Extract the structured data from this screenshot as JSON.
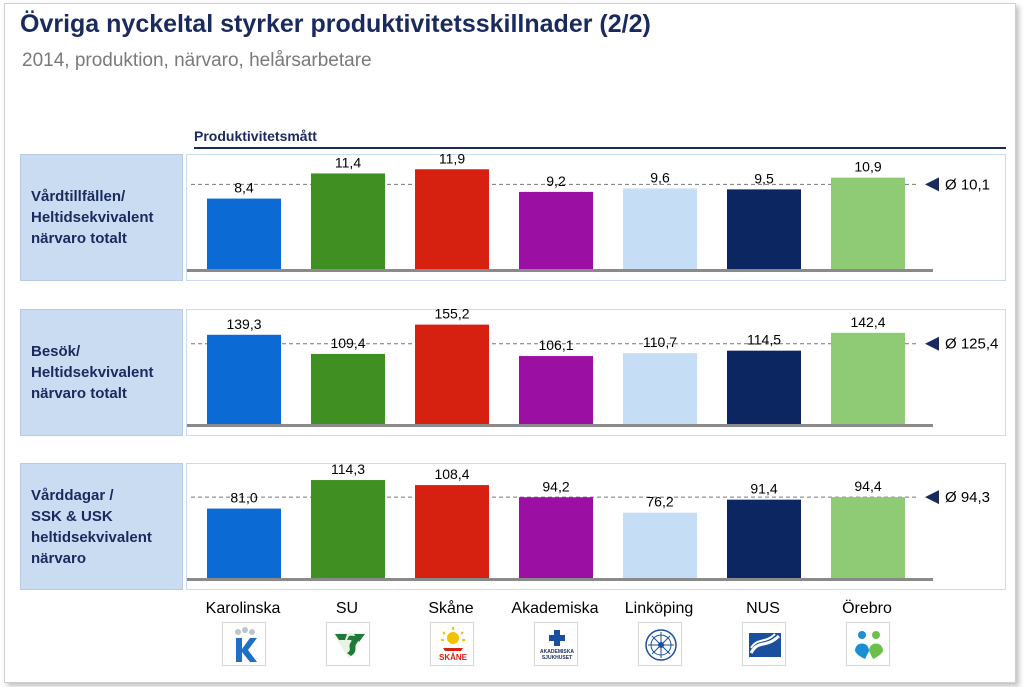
{
  "title": "Övriga nyckeltal styrker produktivitetsskillnader (2/2)",
  "subtitle": "2014, produktion, närvaro, helårsarbetare",
  "section_header": "Produktivitetsmått",
  "categories": [
    "Karolinska",
    "SU",
    "Skåne",
    "Akademiska",
    "Linköping",
    "NUS",
    "Örebro"
  ],
  "colors": [
    "#0c6ad4",
    "#3f8f22",
    "#d62010",
    "#9b10a3",
    "#c6ddf6",
    "#0b2661",
    "#8ecb74"
  ],
  "logos": [
    "karolinska-logo",
    "su-logo",
    "skane-logo",
    "akademiska-logo",
    "linkoping-logo",
    "nus-logo",
    "orebro-logo"
  ],
  "logo_texts": {
    "akademiska": "AKADEMISKA SJUKHUSET",
    "skane": "SKÅNE"
  },
  "chart_data": [
    {
      "type": "bar",
      "title": "Vårdtillfällen/\nHeltidsekvivalent\nnärvaro totalt",
      "categories": [
        "Karolinska",
        "SU",
        "Skåne",
        "Akademiska",
        "Linköping",
        "NUS",
        "Örebro"
      ],
      "values": [
        8.4,
        11.4,
        11.9,
        9.2,
        9.6,
        9.5,
        10.9
      ],
      "labels": [
        "8,4",
        "11,4",
        "11,9",
        "9,2",
        "9,6",
        "9,5",
        "10,9"
      ],
      "average": 10.1,
      "average_label": "Ø 10,1",
      "ymax": 13.6
    },
    {
      "type": "bar",
      "title": "Besök/\nHeltidsekvivalent\nnärvaro totalt",
      "categories": [
        "Karolinska",
        "SU",
        "Skåne",
        "Akademiska",
        "Linköping",
        "NUS",
        "Örebro"
      ],
      "values": [
        139.3,
        109.4,
        155.2,
        106.1,
        110.7,
        114.5,
        142.4
      ],
      "labels": [
        "139,3",
        "109,4",
        "155,2",
        "106,1",
        "110,7",
        "114,5",
        "142,4"
      ],
      "average": 125.4,
      "average_label": "Ø 125,4",
      "ymax": 178
    },
    {
      "type": "bar",
      "title": "Vårddagar /\nSSK & USK\nheltidsekvivalent\nnärvaro",
      "categories": [
        "Karolinska",
        "SU",
        "Skåne",
        "Akademiska",
        "Linköping",
        "NUS",
        "Örebro"
      ],
      "values": [
        81.0,
        114.3,
        108.4,
        94.2,
        76.2,
        91.4,
        94.4
      ],
      "labels": [
        "81,0",
        "114,3",
        "108,4",
        "94,2",
        "76,2",
        "91,4",
        "94,4"
      ],
      "average": 94.3,
      "average_label": "Ø 94,3",
      "ymax": 133
    }
  ]
}
